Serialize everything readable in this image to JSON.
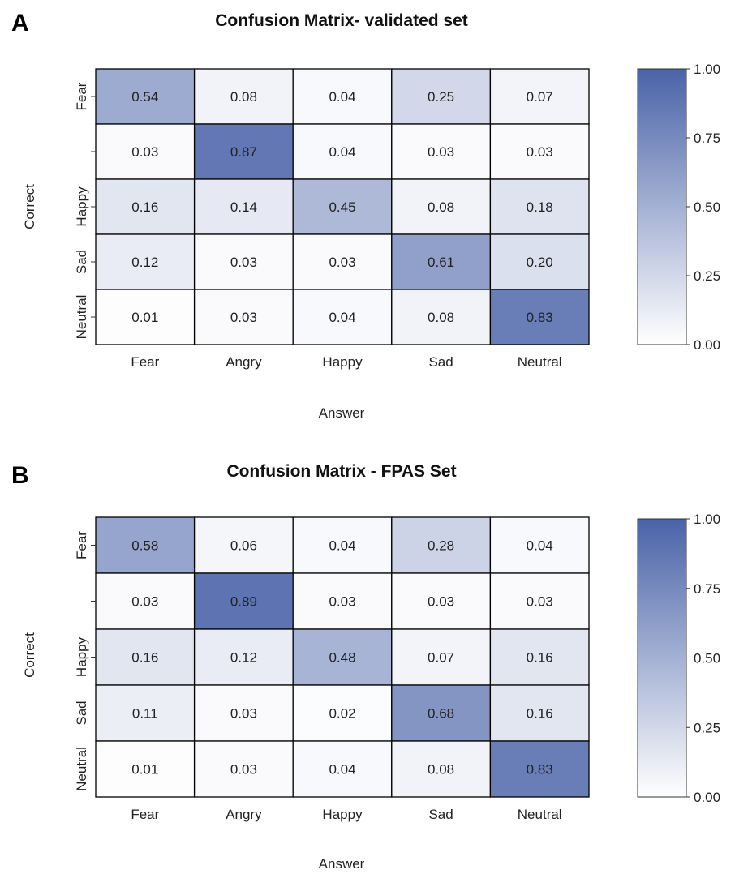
{
  "colors": {
    "low": "#ffffff",
    "high": "#4a63a8",
    "grid": "#000000"
  },
  "chart_data": [
    {
      "type": "heatmap",
      "panel": "A",
      "title": "Confusion Matrix- validated set",
      "xlabel": "Answer",
      "ylabel": "Correct",
      "x_categories": [
        "Fear",
        "Angry",
        "Happy",
        "Sad",
        "Neutral"
      ],
      "y_categories": [
        "Fear",
        "",
        "Happy",
        "Sad",
        "Neutral"
      ],
      "values": [
        [
          0.54,
          0.08,
          0.04,
          0.25,
          0.07
        ],
        [
          0.03,
          0.87,
          0.04,
          0.03,
          0.03
        ],
        [
          0.16,
          0.14,
          0.45,
          0.08,
          0.18
        ],
        [
          0.12,
          0.03,
          0.03,
          0.61,
          0.2
        ],
        [
          0.01,
          0.03,
          0.04,
          0.08,
          0.83
        ]
      ],
      "value_labels": [
        [
          "0.54",
          "0.08",
          "0.04",
          "0.25",
          "0.07"
        ],
        [
          "0.03",
          "0.87",
          "0.04",
          "0.03",
          "0.03"
        ],
        [
          "0.16",
          "0.14",
          "0.45",
          "0.08",
          "0.18"
        ],
        [
          "0.12",
          "0.03",
          "0.03",
          "0.61",
          "0.20"
        ],
        [
          "0.01",
          "0.03",
          "0.04",
          "0.08",
          "0.83"
        ]
      ],
      "zlim": [
        0,
        1
      ],
      "colorbar_ticks": [
        "1.00",
        "0.75",
        "0.50",
        "0.25",
        "0.00"
      ]
    },
    {
      "type": "heatmap",
      "panel": "B",
      "title": "Confusion Matrix - FPAS Set",
      "xlabel": "Answer",
      "ylabel": "Correct",
      "x_categories": [
        "Fear",
        "Angry",
        "Happy",
        "Sad",
        "Neutral"
      ],
      "y_categories": [
        "Fear",
        "",
        "Happy",
        "Sad",
        "Neutral"
      ],
      "values": [
        [
          0.58,
          0.06,
          0.04,
          0.28,
          0.04
        ],
        [
          0.03,
          0.89,
          0.03,
          0.03,
          0.03
        ],
        [
          0.16,
          0.12,
          0.48,
          0.07,
          0.16
        ],
        [
          0.11,
          0.03,
          0.02,
          0.68,
          0.16
        ],
        [
          0.01,
          0.03,
          0.04,
          0.08,
          0.83
        ]
      ],
      "value_labels": [
        [
          "0.58",
          "0.06",
          "0.04",
          "0.28",
          "0.04"
        ],
        [
          "0.03",
          "0.89",
          "0.03",
          "0.03",
          "0.03"
        ],
        [
          "0.16",
          "0.12",
          "0.48",
          "0.07",
          "0.16"
        ],
        [
          "0.11",
          "0.03",
          "0.02",
          "0.68",
          "0.16"
        ],
        [
          "0.01",
          "0.03",
          "0.04",
          "0.08",
          "0.83"
        ]
      ],
      "zlim": [
        0,
        1
      ],
      "colorbar_ticks": [
        "1.00",
        "0.75",
        "0.50",
        "0.25",
        "0.00"
      ]
    }
  ]
}
